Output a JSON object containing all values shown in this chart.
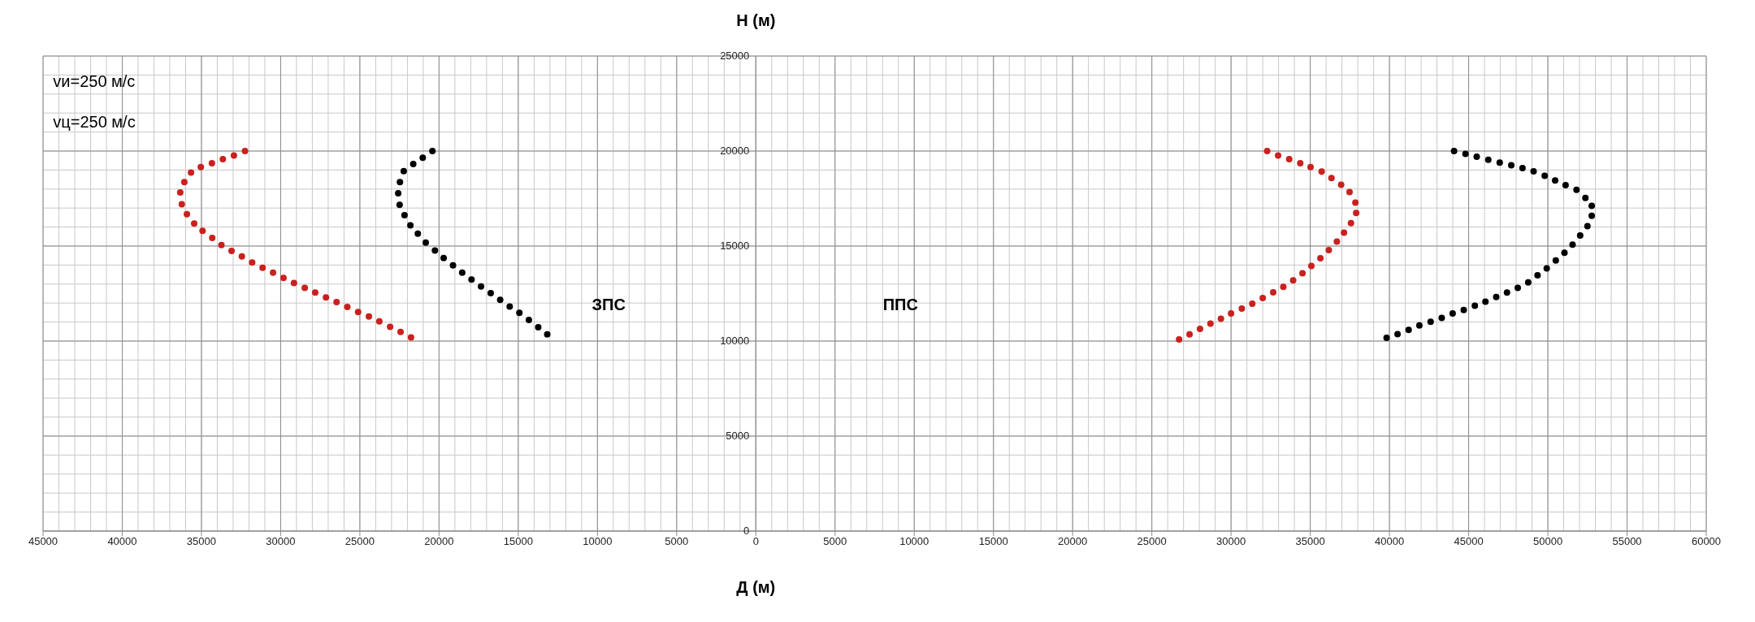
{
  "chart_data": {
    "type": "scatter",
    "xlabel": "Д (м)",
    "ylabel": "Н (м)",
    "xlim": [
      -45000,
      60000
    ],
    "ylim": [
      0,
      25000
    ],
    "xticks": [
      {
        "value": -45000,
        "label": "45000"
      },
      {
        "value": -40000,
        "label": "40000"
      },
      {
        "value": -35000,
        "label": "35000"
      },
      {
        "value": -30000,
        "label": "30000"
      },
      {
        "value": -25000,
        "label": "25000"
      },
      {
        "value": -20000,
        "label": "20000"
      },
      {
        "value": -15000,
        "label": "15000"
      },
      {
        "value": -10000,
        "label": "10000"
      },
      {
        "value": -5000,
        "label": "5000"
      },
      0,
      5000,
      10000,
      15000,
      20000,
      25000,
      30000,
      35000,
      40000,
      45000,
      50000,
      55000,
      60000
    ],
    "yticks": [
      0,
      5000,
      10000,
      15000,
      20000,
      25000
    ],
    "grid": true,
    "marker": "circle",
    "series": [
      {
        "color": "#c9211e",
        "x": [
          -32250,
          -32950,
          -33650,
          -34340,
          -35040,
          -35660,
          -36080,
          -36340,
          -36240,
          -35920,
          -35460,
          -34930,
          -34320,
          -33740,
          -33100,
          -32450,
          -31800,
          -31140,
          -30480,
          -29820,
          -29160,
          -28480,
          -27820,
          -27140,
          -26470,
          -25790,
          -25110,
          -24430,
          -23770,
          -23090,
          -22430,
          -21770
        ],
        "values": [
          20000,
          19770,
          19570,
          19360,
          19160,
          18870,
          18370,
          17820,
          17200,
          16680,
          16190,
          15800,
          15430,
          15050,
          14740,
          14450,
          14130,
          13860,
          13600,
          13320,
          13060,
          12800,
          12550,
          12300,
          12050,
          11790,
          11530,
          11290,
          11040,
          10750,
          10480,
          10190
        ]
      },
      {
        "color": "#000000",
        "x": [
          -20420,
          -21030,
          -21630,
          -22230,
          -22470,
          -22580,
          -22490,
          -22180,
          -21810,
          -21340,
          -20840,
          -20260,
          -19710,
          -19120,
          -18540,
          -17950,
          -17350,
          -16740,
          -16140,
          -15540,
          -14930,
          -14330,
          -13740,
          -13170
        ],
        "values": [
          20000,
          19650,
          19320,
          18940,
          18370,
          17780,
          17170,
          16620,
          16090,
          15650,
          15180,
          14760,
          14370,
          13990,
          13600,
          13240,
          12870,
          12520,
          12170,
          11820,
          11480,
          11110,
          10730,
          10350
        ]
      },
      {
        "color": "#c9211e",
        "x": [
          32280,
          32970,
          33670,
          34370,
          35020,
          35720,
          36340,
          36950,
          37480,
          37850,
          37900,
          37570,
          37130,
          36680,
          36170,
          35640,
          35070,
          34510,
          33920,
          33300,
          32660,
          32000,
          31340,
          30680,
          30000,
          29360,
          28700,
          28040,
          27380,
          26720
        ],
        "values": [
          20000,
          19770,
          19570,
          19360,
          19160,
          18920,
          18580,
          18230,
          17840,
          17290,
          16740,
          16210,
          15700,
          15230,
          14790,
          14360,
          13950,
          13570,
          13190,
          12850,
          12560,
          12270,
          11970,
          11710,
          11450,
          11180,
          10920,
          10640,
          10350,
          10090
        ]
      },
      {
        "color": "#000000",
        "x": [
          44080,
          44800,
          45510,
          46240,
          46960,
          47690,
          48400,
          49100,
          49800,
          50460,
          51120,
          51810,
          52370,
          52770,
          52770,
          52500,
          52040,
          51560,
          51050,
          50500,
          49930,
          49350,
          48760,
          48100,
          47420,
          46740,
          46060,
          45390,
          44690,
          43990,
          43300,
          42600,
          41890,
          41210,
          40510,
          39820
        ],
        "values": [
          20000,
          19850,
          19700,
          19540,
          19390,
          19250,
          19100,
          18930,
          18700,
          18450,
          18200,
          17960,
          17530,
          17120,
          16590,
          16050,
          15560,
          15080,
          14650,
          14240,
          13820,
          13460,
          13090,
          12800,
          12550,
          12320,
          12070,
          11860,
          11630,
          11450,
          11220,
          11020,
          10820,
          10590,
          10360,
          10170
        ]
      }
    ],
    "annotations": [
      "vи=250 м/с",
      "vц=250 м/с",
      "ЗПС",
      "ППС"
    ]
  }
}
